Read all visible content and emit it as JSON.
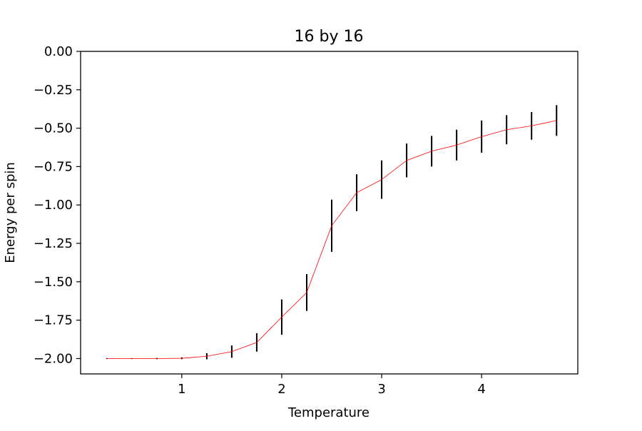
{
  "chart_data": {
    "type": "line",
    "title": "16 by 16",
    "xlabel": "Temperature",
    "ylabel": "Energy per spin",
    "xlim": [
      -0.0125,
      4.9625
    ],
    "ylim": [
      -2.1,
      0.0
    ],
    "x_ticks": [
      1,
      2,
      3,
      4
    ],
    "x_tick_labels": [
      "1",
      "2",
      "3",
      "4"
    ],
    "y_ticks": [
      0.0,
      -0.25,
      -0.5,
      -0.75,
      -1.0,
      -1.25,
      -1.5,
      -1.75,
      -2.0
    ],
    "y_tick_labels": [
      "0.00",
      "−0.25",
      "−0.50",
      "−0.75",
      "−1.00",
      "−1.25",
      "−1.50",
      "−1.75",
      "−2.00"
    ],
    "grid": false,
    "legend": "none",
    "line_color": "#ff0000",
    "errorbar_color": "#000000",
    "series": [
      {
        "x": [
          0.25,
          0.5,
          0.75,
          1.0,
          1.25,
          1.5,
          1.75,
          2.0,
          2.25,
          2.5,
          2.75,
          3.0,
          3.25,
          3.5,
          3.75,
          4.0,
          4.25,
          4.5,
          4.75
        ],
        "y": [
          -2.0,
          -2.0,
          -2.0,
          -1.998,
          -1.985,
          -1.955,
          -1.895,
          -1.73,
          -1.57,
          -1.135,
          -0.92,
          -0.835,
          -0.71,
          -0.65,
          -0.61,
          -0.555,
          -0.51,
          -0.485,
          -0.45
        ],
        "error": [
          0.003,
          0.003,
          0.004,
          0.006,
          0.02,
          0.04,
          0.06,
          0.115,
          0.12,
          0.17,
          0.12,
          0.125,
          0.11,
          0.1,
          0.1,
          0.105,
          0.095,
          0.09,
          0.1
        ]
      }
    ]
  }
}
